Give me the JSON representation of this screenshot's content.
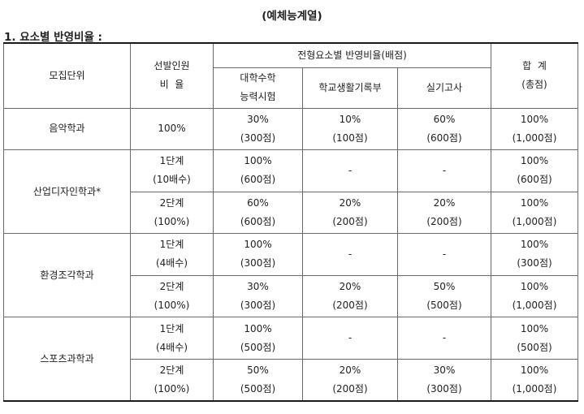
{
  "page": {
    "title": "(예체능계열)",
    "section_heading": "1. 요소별 반영비율 :"
  },
  "table": {
    "header": {
      "unit": "모집단위",
      "selection": [
        "선발인원",
        "비  율"
      ],
      "group": "전형요소별 반영비율(배점)",
      "exam": [
        "대학수학",
        "능력시험"
      ],
      "school_record": "학교생활기록부",
      "practical": "실기고사",
      "total": [
        "합  계",
        "(총점)"
      ]
    },
    "rows": [
      {
        "unit": "음악학과",
        "stages": [
          {
            "selection": [
              "100%"
            ],
            "exam": [
              "30%",
              "(300점)"
            ],
            "school_record": [
              "10%",
              "(100점)"
            ],
            "practical": [
              "60%",
              "(600점)"
            ],
            "total": [
              "100%",
              "(1,000점)"
            ]
          }
        ]
      },
      {
        "unit": "산업디자인학과*",
        "stages": [
          {
            "selection": [
              "1단계",
              "(10배수)"
            ],
            "exam": [
              "100%",
              "(600점)"
            ],
            "school_record": [
              "-"
            ],
            "practical": [
              "-"
            ],
            "total": [
              "100%",
              "(600점)"
            ]
          },
          {
            "selection": [
              "2단계",
              "(100%)"
            ],
            "exam": [
              "60%",
              "(600점)"
            ],
            "school_record": [
              "20%",
              "(200점)"
            ],
            "practical": [
              "20%",
              "(200점)"
            ],
            "total": [
              "100%",
              "(1,000점)"
            ]
          }
        ]
      },
      {
        "unit": "환경조각학과",
        "stages": [
          {
            "selection": [
              "1단계",
              "(4배수)"
            ],
            "exam": [
              "100%",
              "(300점)"
            ],
            "school_record": [
              "-"
            ],
            "practical": [
              "-"
            ],
            "total": [
              "100%",
              "(300점)"
            ]
          },
          {
            "selection": [
              "2단계",
              "(100%)"
            ],
            "exam": [
              "30%",
              "(300점)"
            ],
            "school_record": [
              "20%",
              "(200점)"
            ],
            "practical": [
              "50%",
              "(500점)"
            ],
            "total": [
              "100%",
              "(1,000점)"
            ]
          }
        ]
      },
      {
        "unit": "스포츠과학과",
        "stages": [
          {
            "selection": [
              "1단계",
              "(4배수)"
            ],
            "exam": [
              "100%",
              "(500점)"
            ],
            "school_record": [
              "-"
            ],
            "practical": [
              "-"
            ],
            "total": [
              "100%",
              "(500점)"
            ]
          },
          {
            "selection": [
              "2단계",
              "(100%)"
            ],
            "exam": [
              "50%",
              "(500점)"
            ],
            "school_record": [
              "20%",
              "(200점)"
            ],
            "practical": [
              "30%",
              "(300점)"
            ],
            "total": [
              "100%",
              "(1,000점)"
            ]
          }
        ]
      }
    ]
  }
}
